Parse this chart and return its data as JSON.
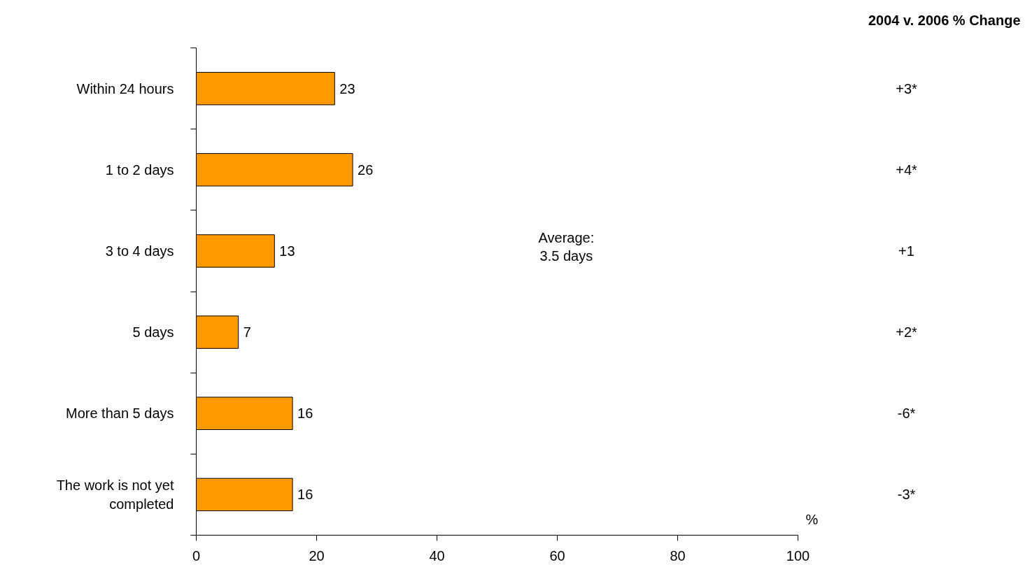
{
  "chart_data": {
    "type": "bar",
    "orientation": "horizontal",
    "categories": [
      "Within 24 hours",
      "1 to 2 days",
      "3 to 4 days",
      "5 days",
      "More than 5 days",
      "The work is not yet completed"
    ],
    "values": [
      23,
      26,
      13,
      7,
      16,
      16
    ],
    "color": "#ff9900",
    "xlim": [
      0,
      100
    ],
    "xticks": [
      0,
      20,
      40,
      60,
      80,
      100
    ],
    "data_labels": true,
    "grid": false,
    "annotations": [
      "2004 v. 2006 % Change",
      "+3*",
      "+4*",
      "+1",
      "+2*",
      "-6*",
      "-3*",
      "%",
      "Average: 3.5 days"
    ]
  }
}
